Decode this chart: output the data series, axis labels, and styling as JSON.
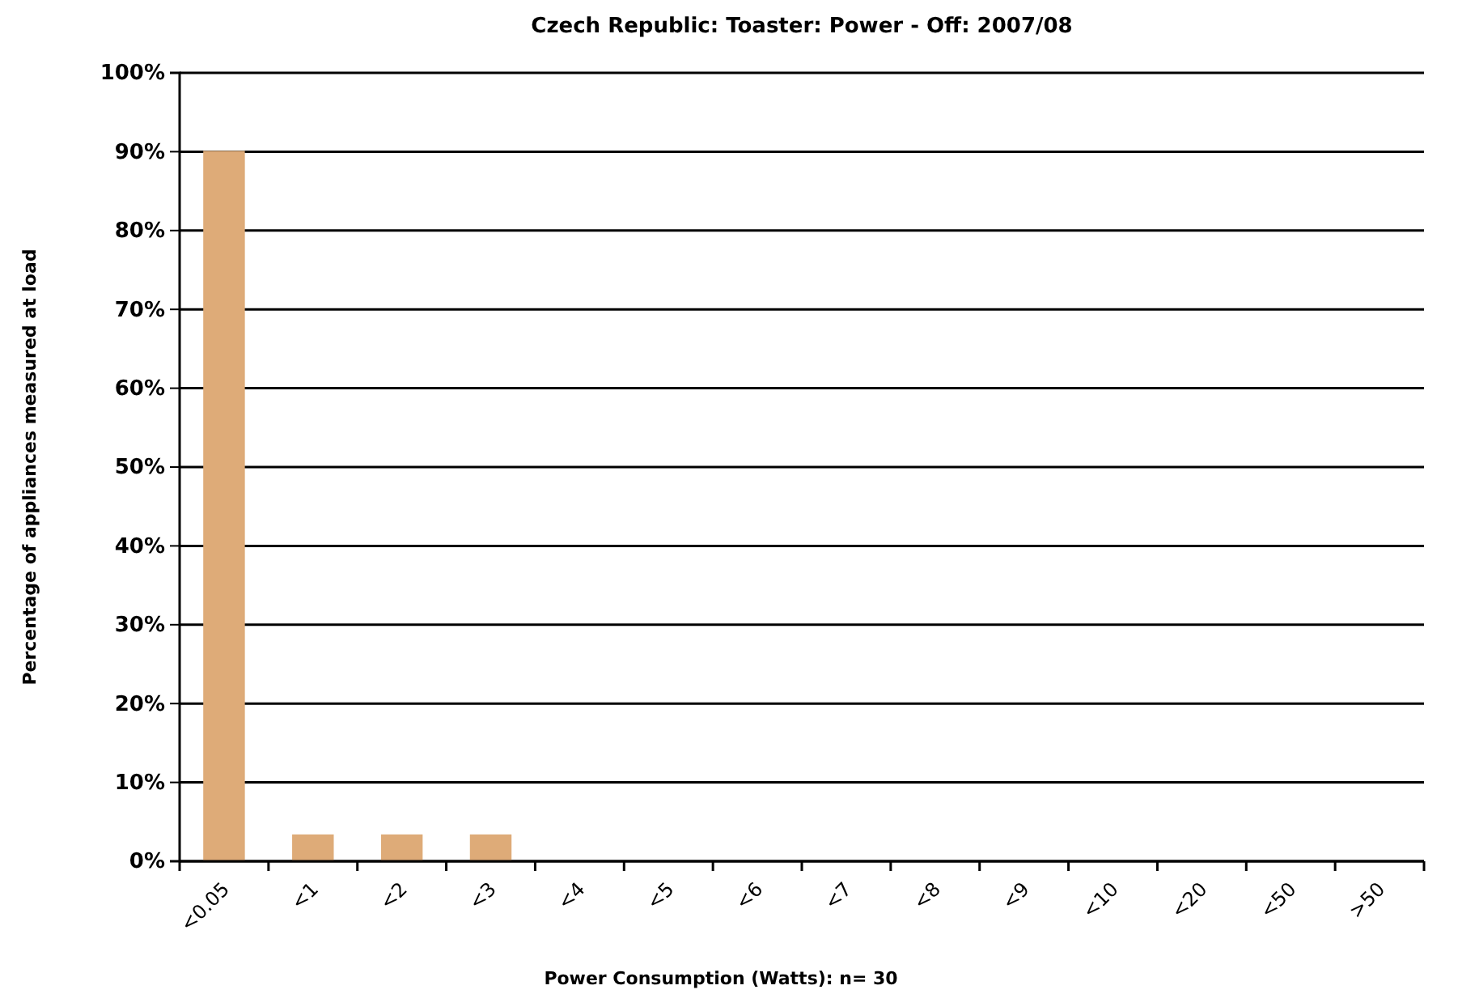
{
  "chart_data": {
    "type": "bar",
    "title": "Czech Republic: Toaster: Power - Off: 2007/08",
    "xlabel": "Power Consumption (Watts):  n= 30",
    "ylabel": "Percentage of appliances measured at load",
    "categories": [
      "<0.05",
      "<1",
      "<2",
      "<3",
      "<4",
      "<5",
      "<6",
      "<7",
      "<8",
      "<9",
      "<10",
      "<20",
      "<50",
      ">50"
    ],
    "values": [
      90,
      3.3,
      3.3,
      3.3,
      0,
      0,
      0,
      0,
      0,
      0,
      0,
      0,
      0,
      0
    ],
    "color": "#deab78",
    "ylim": [
      0,
      100
    ],
    "yticks": [
      {
        "value": 0,
        "label": "0%"
      },
      {
        "value": 10,
        "label": "10%"
      },
      {
        "value": 20,
        "label": "20%"
      },
      {
        "value": 30,
        "label": "30%"
      },
      {
        "value": 40,
        "label": "40%"
      },
      {
        "value": 50,
        "label": "50%"
      },
      {
        "value": 60,
        "label": "60%"
      },
      {
        "value": 70,
        "label": "70%"
      },
      {
        "value": 80,
        "label": "80%"
      },
      {
        "value": 90,
        "label": "90%"
      },
      {
        "value": 100,
        "label": "100%"
      }
    ],
    "grid": "y"
  }
}
